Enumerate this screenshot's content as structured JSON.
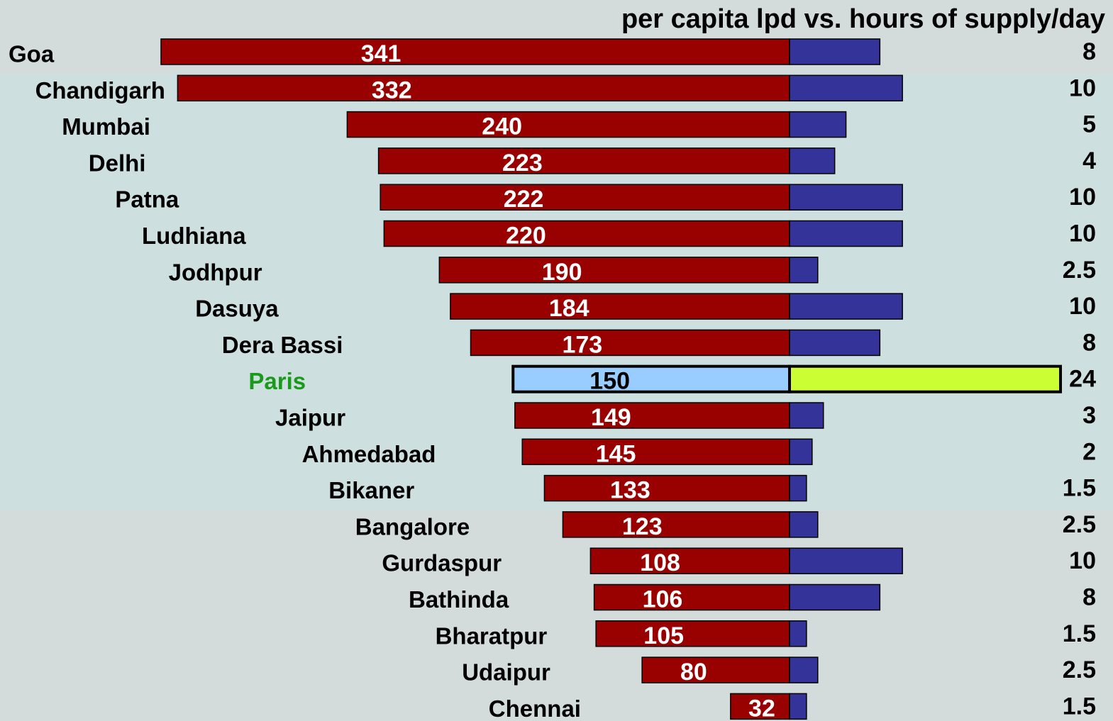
{
  "chart_data": {
    "type": "butterfly-bar",
    "title": "per capita lpd vs. hours of supply/day",
    "categories": [
      "Goa",
      "Chandigarh",
      "Mumbai",
      "Delhi",
      "Patna",
      "Ludhiana",
      "Jodhpur",
      "Dasuya",
      "Dera Bassi",
      "Paris",
      "Jaipur",
      "Ahmedabad",
      "Bikaner",
      "Bangalore",
      "Gurdaspur",
      "Bathinda",
      "Bharatpur",
      "Udaipur",
      "Chennai"
    ],
    "series": [
      {
        "color": "#990000",
        "highlight_color": "#99ccff",
        "values": [
          341,
          332,
          240,
          223,
          222,
          220,
          190,
          184,
          173,
          150,
          149,
          145,
          133,
          123,
          108,
          106,
          105,
          80,
          32
        ]
      },
      {
        "color": "#333399",
        "highlight_color": "#ccff33",
        "values": [
          8,
          10,
          5,
          4,
          10,
          10,
          2.5,
          10,
          8,
          24,
          3,
          2,
          1.5,
          2.5,
          10,
          8,
          1.5,
          2.5,
          1.5
        ]
      }
    ],
    "highlight_index": 9,
    "highlight_label_color": "#1a9a1a"
  }
}
